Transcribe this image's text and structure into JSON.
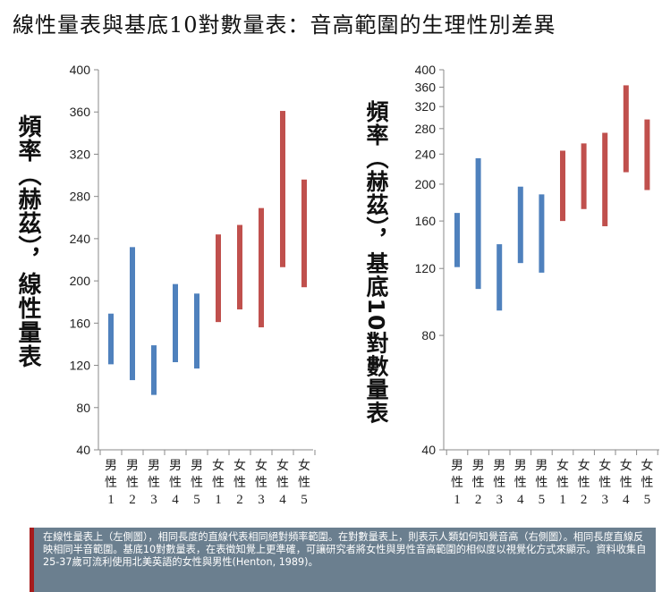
{
  "title": "線性量表與基底10對數量表：音高範圍的生理性別差異",
  "caption": "在線性量表上（左側圖），相同長度的直線代表相同絕對頻率範圍。在對數量表上，則表示人類如何知覺音高（右側圖）。相同長度直線反映相同半音範圍。基底10對數量表，在表徵知覺上更準確，可讓研究者將女性與男性音高範圍的相似度以視覺化方式來顯示。資料收集自25-37歲可流利使用北美英語的女性與男性(Henton, 1989)。",
  "chart_data": [
    {
      "type": "bar",
      "scale": "linear",
      "ylabel": "頻率（赫茲），線性量表",
      "ylim": [
        40,
        400
      ],
      "yticks": [
        40,
        80,
        120,
        160,
        200,
        240,
        280,
        320,
        360,
        400
      ],
      "grid": false,
      "categories": [
        {
          "sex": "男",
          "label": "性",
          "num": "1"
        },
        {
          "sex": "男",
          "label": "性",
          "num": "2"
        },
        {
          "sex": "男",
          "label": "性",
          "num": "3"
        },
        {
          "sex": "男",
          "label": "性",
          "num": "4"
        },
        {
          "sex": "男",
          "label": "性",
          "num": "5"
        },
        {
          "sex": "女",
          "label": "性",
          "num": "1"
        },
        {
          "sex": "女",
          "label": "性",
          "num": "2"
        },
        {
          "sex": "女",
          "label": "性",
          "num": "3"
        },
        {
          "sex": "女",
          "label": "性",
          "num": "4"
        },
        {
          "sex": "女",
          "label": "性",
          "num": "5"
        }
      ],
      "ranges": [
        [
          121,
          169
        ],
        [
          106,
          232
        ],
        [
          92,
          139
        ],
        [
          123,
          197
        ],
        [
          117,
          188
        ],
        [
          161,
          244
        ],
        [
          173,
          253
        ],
        [
          156,
          269
        ],
        [
          213,
          361
        ],
        [
          194,
          296
        ]
      ],
      "colors": [
        "#4f81bd",
        "#4f81bd",
        "#4f81bd",
        "#4f81bd",
        "#4f81bd",
        "#c0504d",
        "#c0504d",
        "#c0504d",
        "#c0504d",
        "#c0504d"
      ]
    },
    {
      "type": "bar",
      "scale": "log10",
      "ylabel": "頻率（赫茲），基底10對數量表",
      "ylim": [
        40,
        400
      ],
      "yticks": [
        40,
        80,
        120,
        160,
        200,
        240,
        280,
        320,
        360,
        400
      ],
      "grid": false,
      "categories": [
        {
          "sex": "男",
          "label": "性",
          "num": "1"
        },
        {
          "sex": "男",
          "label": "性",
          "num": "2"
        },
        {
          "sex": "男",
          "label": "性",
          "num": "3"
        },
        {
          "sex": "男",
          "label": "性",
          "num": "4"
        },
        {
          "sex": "男",
          "label": "性",
          "num": "5"
        },
        {
          "sex": "女",
          "label": "性",
          "num": "1"
        },
        {
          "sex": "女",
          "label": "性",
          "num": "2"
        },
        {
          "sex": "女",
          "label": "性",
          "num": "3"
        },
        {
          "sex": "女",
          "label": "性",
          "num": "4"
        },
        {
          "sex": "女",
          "label": "性",
          "num": "5"
        }
      ],
      "ranges": [
        [
          121,
          168
        ],
        [
          106,
          234
        ],
        [
          93,
          139
        ],
        [
          124,
          197
        ],
        [
          117,
          188
        ],
        [
          160,
          245
        ],
        [
          172,
          256
        ],
        [
          155,
          273
        ],
        [
          215,
          364
        ],
        [
          193,
          296
        ]
      ],
      "colors": [
        "#4f81bd",
        "#4f81bd",
        "#4f81bd",
        "#4f81bd",
        "#4f81bd",
        "#c0504d",
        "#c0504d",
        "#c0504d",
        "#c0504d",
        "#c0504d"
      ]
    }
  ]
}
